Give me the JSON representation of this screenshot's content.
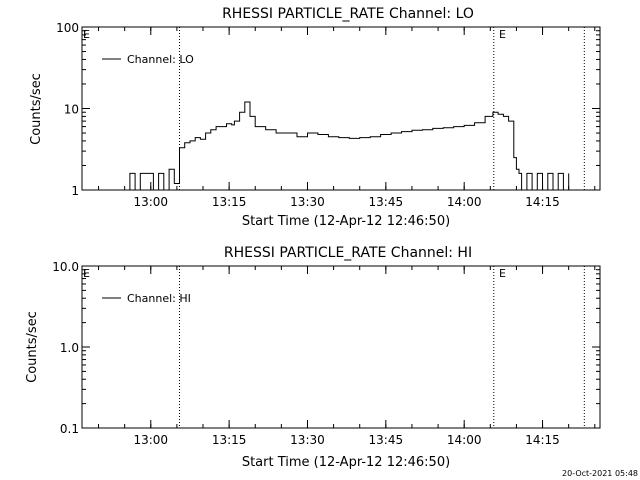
{
  "chart_data": [
    {
      "type": "line",
      "title": "RHESSI PARTICLE_RATE Channel: LO",
      "xlabel": "Start Time (12-Apr-12 12:46:50)",
      "ylabel": "Counts/sec",
      "yscale": "log",
      "ylim": [
        1,
        100
      ],
      "xlim": [
        "12:46:50",
        "14:26:00"
      ],
      "x_ticks": [
        "13:00",
        "13:15",
        "13:30",
        "13:45",
        "14:00",
        "14:15"
      ],
      "y_ticks": [
        "1",
        "10",
        "100"
      ],
      "event_flag": "E",
      "event_lines": [
        "13:05:30",
        "14:05:40",
        "14:23:00"
      ],
      "legend": {
        "label": "Channel: LO",
        "position": "top-left"
      },
      "series": [
        {
          "name": "Channel: LO",
          "x": [
            "12:55:30",
            "12:56:00",
            "12:57:00",
            "12:58:00",
            "12:59:00",
            "13:00:30",
            "13:01:30",
            "13:02:30",
            "13:03:30",
            "13:04:30",
            "13:05:30",
            "13:06:30",
            "13:07:30",
            "13:08:30",
            "13:09:30",
            "13:10:30",
            "13:11:30",
            "13:12:30",
            "13:13:30",
            "13:14:30",
            "13:15:30",
            "13:16:00",
            "13:17:00",
            "13:18:00",
            "13:19:00",
            "13:20:00",
            "13:22:00",
            "13:24:00",
            "13:26:00",
            "13:28:00",
            "13:30:00",
            "13:32:00",
            "13:34:00",
            "13:36:00",
            "13:38:00",
            "13:40:00",
            "13:42:00",
            "13:44:00",
            "13:46:00",
            "13:48:00",
            "13:50:00",
            "13:52:00",
            "13:54:00",
            "13:56:00",
            "13:58:00",
            "14:00:00",
            "14:02:00",
            "14:04:00",
            "14:05:30",
            "14:06:30",
            "14:07:30",
            "14:08:30",
            "14:09:30",
            "14:10:00",
            "14:10:30",
            "14:11:00",
            "14:12:00",
            "14:13:00",
            "14:14:00",
            "14:15:00",
            "14:16:00",
            "14:17:00",
            "14:18:00",
            "14:19:00",
            "14:20:00"
          ],
          "y": [
            1,
            1.6,
            1,
            1.6,
            1.6,
            1,
            1.6,
            1,
            1.8,
            1.2,
            3.3,
            3.8,
            4,
            4.4,
            4.2,
            5,
            5.5,
            6,
            6,
            6.5,
            6.3,
            7,
            9,
            12,
            8,
            6,
            5.5,
            5,
            5,
            4.5,
            5,
            4.8,
            4.5,
            4.4,
            4.3,
            4.4,
            4.5,
            4.8,
            5,
            5.2,
            5.4,
            5.5,
            5.7,
            5.8,
            6,
            6.2,
            6.7,
            8,
            9,
            8.5,
            8,
            7,
            2.5,
            1.8,
            1.6,
            1,
            1.6,
            1,
            1.6,
            1,
            1.6,
            1,
            1.6,
            1,
            1.6
          ]
        }
      ]
    },
    {
      "type": "line",
      "title": "RHESSI PARTICLE_RATE Channel: HI",
      "xlabel": "Start Time (12-Apr-12 12:46:50)",
      "ylabel": "Counts/sec",
      "yscale": "log",
      "ylim": [
        0.1,
        10
      ],
      "xlim": [
        "12:46:50",
        "14:26:00"
      ],
      "x_ticks": [
        "13:00",
        "13:15",
        "13:30",
        "13:45",
        "14:00",
        "14:15"
      ],
      "y_ticks": [
        "0.1",
        "1.0",
        "10.0"
      ],
      "event_flag": "E",
      "event_lines": [
        "13:05:30",
        "14:05:40",
        "14:23:00"
      ],
      "legend": {
        "label": "Channel: HI",
        "position": "top-left"
      },
      "series": [
        {
          "name": "Channel: HI",
          "x": [],
          "y": []
        }
      ]
    }
  ],
  "footer": {
    "timestamp": "20-Oct-2021 05:48"
  }
}
